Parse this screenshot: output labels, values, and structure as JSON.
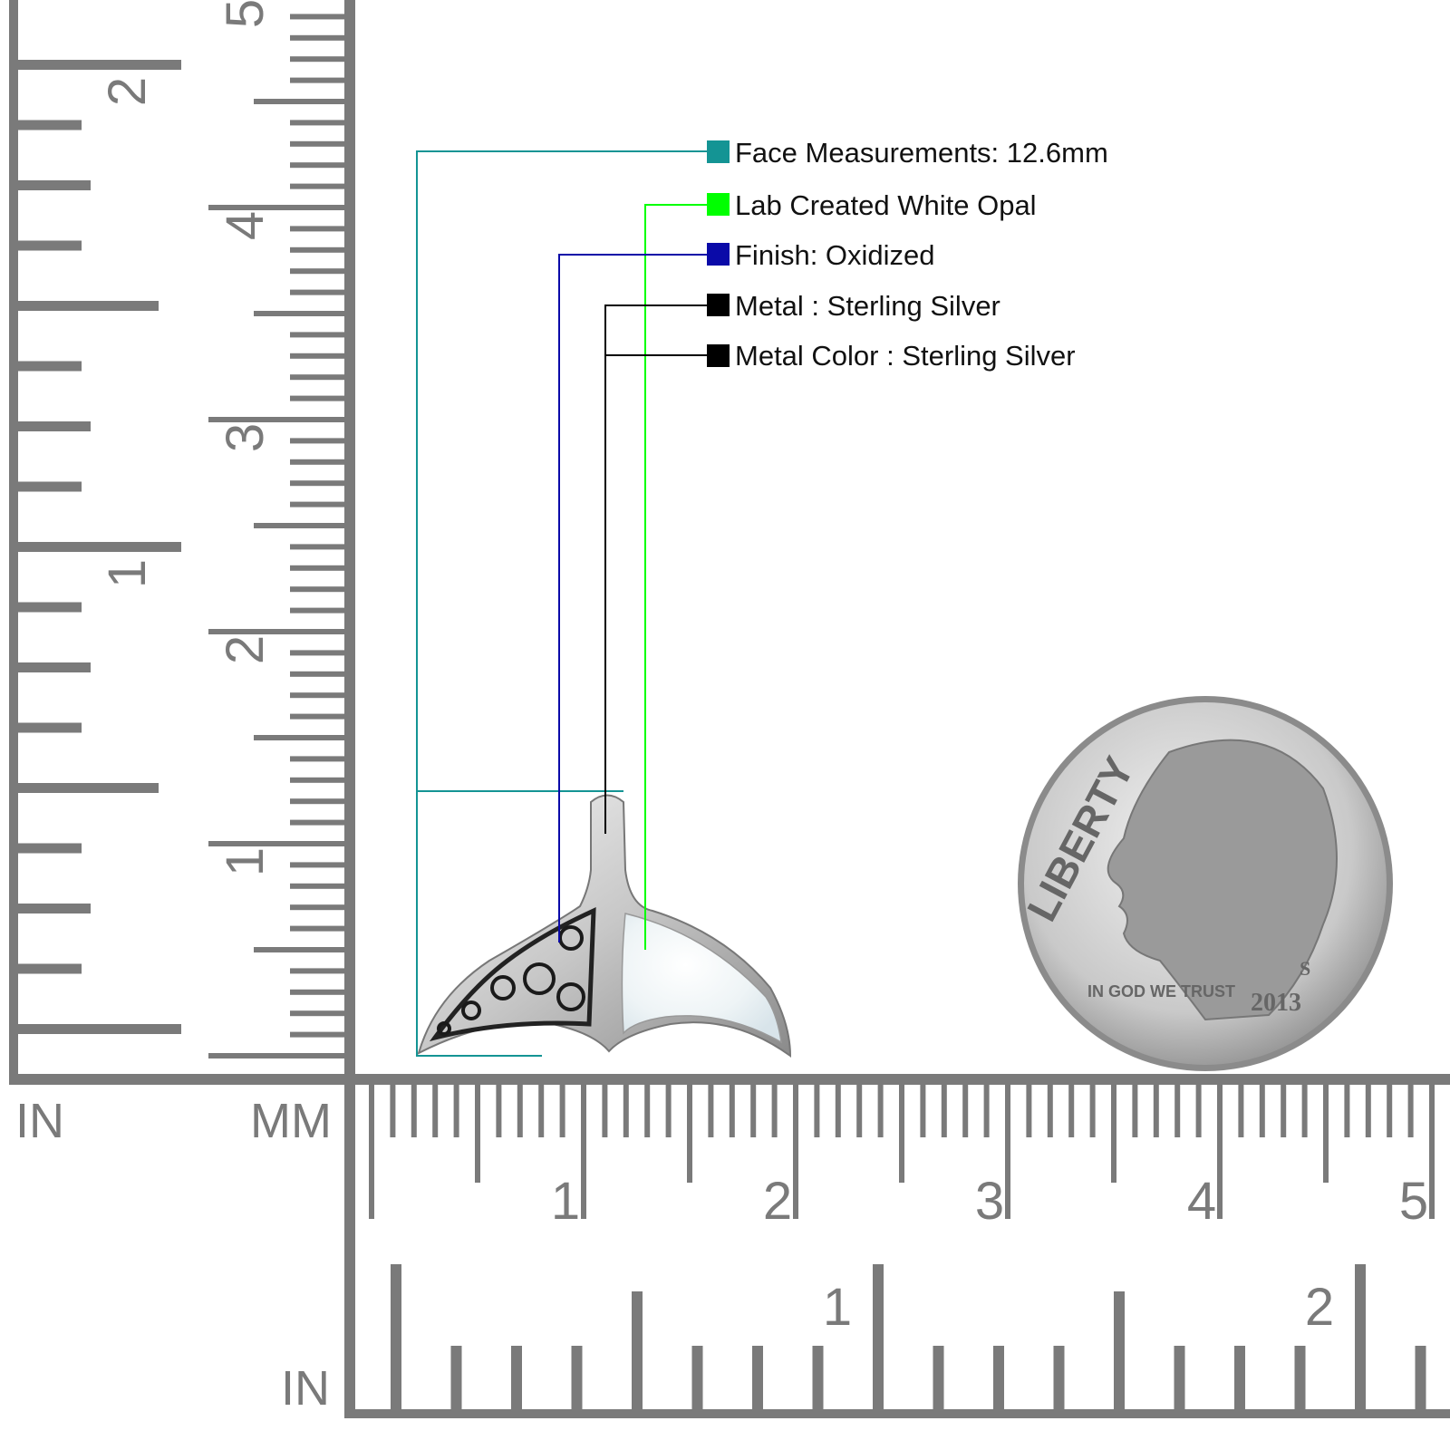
{
  "callouts": [
    {
      "text": "Face Measurements: 12.6mm",
      "color": "#149494"
    },
    {
      "text": "Lab Created White Opal",
      "color": "#00ff00"
    },
    {
      "text": "Finish: Oxidized",
      "color": "#0a0aa8"
    },
    {
      "text": "Metal : Sterling Silver",
      "color": "#000000"
    },
    {
      "text": "Metal Color : Sterling Silver",
      "color": "#000000"
    }
  ],
  "rulers": {
    "unit_in_left": "IN",
    "unit_mm": "MM",
    "unit_in_bottom": "IN",
    "vertical_mm_labels": [
      "1",
      "2",
      "3",
      "4",
      "5"
    ],
    "vertical_in_labels": [
      "1",
      "2"
    ],
    "horizontal_mm_labels": [
      "1",
      "2",
      "3",
      "4",
      "5"
    ],
    "horizontal_in_labels": [
      "1",
      "2"
    ],
    "color": "#7a7a7a"
  },
  "coin": {
    "legend": "LIBERTY",
    "motto": "IN GOD WE TRUST",
    "year": "2013",
    "mint_mark": "S"
  }
}
